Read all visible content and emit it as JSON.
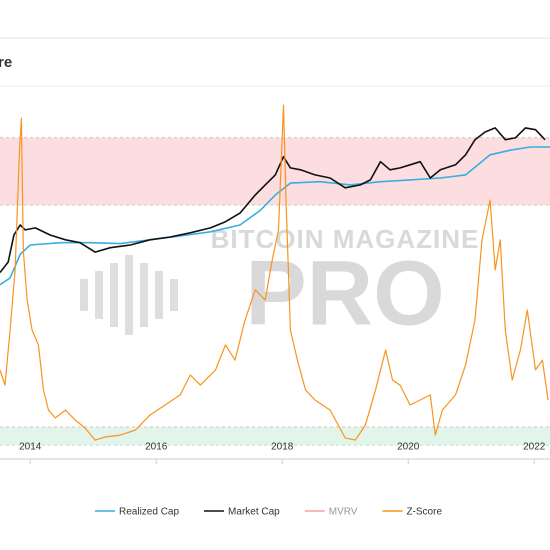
{
  "chart_data": {
    "type": "line",
    "title": "re",
    "xlim": [
      2013.52,
      2022.25
    ],
    "xticks": [
      2014,
      2016,
      2018,
      2020,
      2022
    ],
    "ylim": [
      -1,
      12
    ],
    "y2lim": [
      0.0001,
      10000
    ],
    "y2_log": true,
    "bands": [
      {
        "from": 7.9,
        "to": 10.3,
        "color": "#fbd5d8"
      },
      {
        "from": -0.65,
        "to": 0,
        "color": "#d9f3e6"
      }
    ],
    "watermark": [
      "BITCOIN MAGAZINE",
      "PRO"
    ],
    "legend_position": "bottom",
    "series": [
      {
        "name": "Realized Cap",
        "color": "#3aaee0",
        "axis": "y2",
        "visible": true,
        "x": [
          2013.52,
          2013.68,
          2013.84,
          2014.0,
          2014.48,
          2014.95,
          2015.43,
          2015.9,
          2016.38,
          2016.86,
          2017.33,
          2017.65,
          2017.89,
          2018.13,
          2018.6,
          2019.08,
          2019.56,
          2020.03,
          2020.51,
          2020.91,
          2021.14,
          2021.3,
          2021.62,
          2021.94,
          2022.25
        ],
        "values": [
          0.54,
          0.76,
          2.5,
          4.0,
          4.5,
          4.5,
          4.3,
          5.2,
          6.3,
          7.8,
          11,
          23,
          50,
          91,
          98,
          83,
          98,
          107,
          118,
          138,
          251,
          380,
          479,
          562,
          562
        ]
      },
      {
        "name": "Market Cap",
        "color": "#111111",
        "axis": "y2",
        "visible": true,
        "x": [
          2013.52,
          2013.65,
          2013.74,
          2013.84,
          2013.92,
          2014.08,
          2014.32,
          2014.56,
          2014.79,
          2015.03,
          2015.27,
          2015.59,
          2015.9,
          2016.22,
          2016.54,
          2016.86,
          2017.1,
          2017.33,
          2017.57,
          2017.73,
          2017.89,
          2018.02,
          2018.13,
          2018.29,
          2018.52,
          2018.76,
          2019.0,
          2019.24,
          2019.4,
          2019.56,
          2019.71,
          2019.87,
          2020.03,
          2020.19,
          2020.35,
          2020.51,
          2020.75,
          2020.91,
          2021.06,
          2021.22,
          2021.38,
          2021.54,
          2021.7,
          2021.86,
          2022.02,
          2022.17
        ],
        "values": [
          1.0,
          1.7,
          6.6,
          11,
          8.6,
          9.5,
          6.6,
          5.2,
          4.5,
          2.8,
          3.5,
          4.0,
          5.2,
          6.0,
          7.4,
          9.5,
          13,
          20,
          50,
          83,
          138,
          345,
          196,
          178,
          138,
          118,
          72,
          83,
          107,
          268,
          178,
          196,
          229,
          268,
          118,
          178,
          229,
          380,
          813,
          1200,
          1480,
          813,
          891,
          1480,
          1350,
          813
        ]
      },
      {
        "name": "MVRV",
        "color": "#f4a3a8",
        "axis": "y",
        "visible": false,
        "x": [],
        "values": []
      },
      {
        "name": "Z-Score",
        "color": "#f7941d",
        "axis": "y",
        "visible": true,
        "x": [
          2013.52,
          2013.6,
          2013.68,
          2013.76,
          2013.83,
          2013.86,
          2013.89,
          2013.95,
          2014.03,
          2014.13,
          2014.21,
          2014.29,
          2014.4,
          2014.56,
          2014.71,
          2014.87,
          2015.03,
          2015.19,
          2015.43,
          2015.67,
          2015.9,
          2016.14,
          2016.38,
          2016.54,
          2016.7,
          2016.94,
          2017.1,
          2017.25,
          2017.41,
          2017.57,
          2017.73,
          2017.84,
          2017.94,
          2018.02,
          2018.06,
          2018.13,
          2018.24,
          2018.37,
          2018.52,
          2018.76,
          2019.0,
          2019.16,
          2019.32,
          2019.48,
          2019.64,
          2019.75,
          2019.87,
          2020.03,
          2020.19,
          2020.35,
          2020.43,
          2020.54,
          2020.75,
          2020.91,
          2021.06,
          2021.17,
          2021.3,
          2021.38,
          2021.46,
          2021.54,
          2021.65,
          2021.78,
          2021.89,
          2022.02,
          2022.13,
          2022.22
        ],
        "values": [
          2.03,
          1.49,
          3.45,
          5.59,
          9.86,
          11.0,
          6.3,
          4.52,
          3.45,
          2.92,
          1.31,
          0.6,
          0.32,
          0.6,
          0.25,
          -0.04,
          -0.47,
          -0.36,
          -0.29,
          -0.11,
          0.42,
          0.78,
          1.14,
          1.85,
          1.49,
          2.03,
          2.92,
          2.38,
          3.81,
          4.88,
          4.52,
          5.94,
          7.01,
          11.46,
          8.08,
          3.45,
          2.38,
          1.31,
          0.96,
          0.6,
          -0.39,
          -0.47,
          0.07,
          1.31,
          2.74,
          1.67,
          1.49,
          0.78,
          0.96,
          1.14,
          -0.29,
          0.6,
          1.14,
          2.21,
          3.81,
          6.66,
          8.08,
          5.59,
          6.66,
          3.45,
          1.67,
          2.74,
          4.16,
          2.03,
          2.38,
          0.96
        ]
      }
    ]
  }
}
